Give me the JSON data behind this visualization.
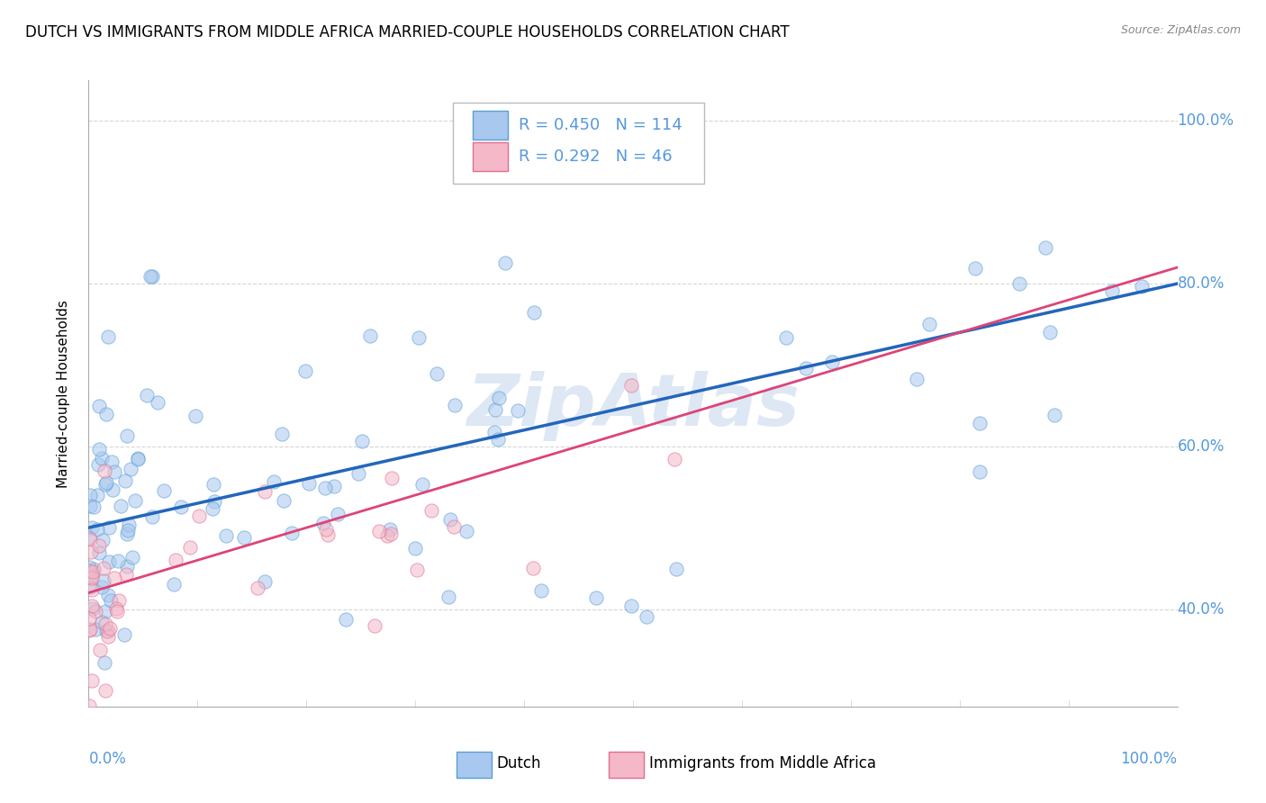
{
  "title": "DUTCH VS IMMIGRANTS FROM MIDDLE AFRICA MARRIED-COUPLE HOUSEHOLDS CORRELATION CHART",
  "source": "Source: ZipAtlas.com",
  "ylabel": "Married-couple Households",
  "watermark": "ZipAtlas",
  "dutch_color": "#a8c8f0",
  "dutch_edge_color": "#5a9fd4",
  "dutch_line_color": "#2266bb",
  "immigrants_color": "#f4b8c8",
  "immigrants_edge_color": "#e07090",
  "immigrants_line_color": "#dd4477",
  "background_color": "#ffffff",
  "grid_color": "#cccccc",
  "tick_color": "#5599dd",
  "ytick_vals": [
    0.4,
    0.6,
    0.8,
    1.0
  ],
  "ytick_labels": [
    "40.0%",
    "60.0%",
    "80.0%",
    "100.0%"
  ],
  "xlim": [
    0.0,
    1.0
  ],
  "ylim": [
    0.28,
    1.05
  ],
  "dutch_line_x0": 0.0,
  "dutch_line_y0": 0.5,
  "dutch_line_x1": 1.0,
  "dutch_line_y1": 0.8,
  "imm_line_x0": 0.0,
  "imm_line_y0": 0.42,
  "imm_line_x1": 1.0,
  "imm_line_y1": 0.82,
  "title_fontsize": 12,
  "axis_label_fontsize": 11,
  "tick_fontsize": 12,
  "legend_fontsize": 13,
  "point_size": 120,
  "point_alpha": 0.55
}
